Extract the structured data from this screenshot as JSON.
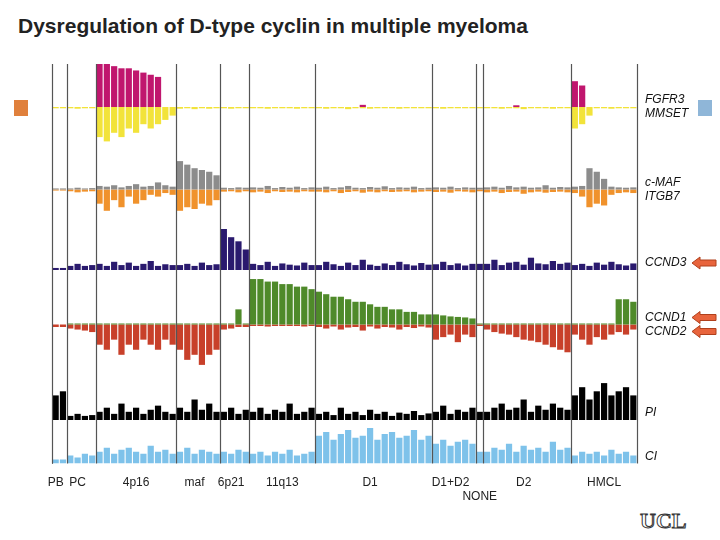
{
  "chart_data": {
    "type": "bar",
    "title": "Dysregulation of D-type cyclin in multiple myeloma",
    "logo": "UCL",
    "grid": false,
    "tick_labels": "x",
    "categories": [
      "PB",
      null,
      null,
      "PC",
      null,
      null,
      null,
      null,
      null,
      null,
      null,
      "4p16",
      null,
      null,
      null,
      null,
      null,
      null,
      null,
      "maf",
      null,
      null,
      null,
      null,
      "6p21",
      null,
      null,
      null,
      null,
      null,
      null,
      "11q13",
      null,
      null,
      null,
      null,
      null,
      null,
      null,
      null,
      null,
      null,
      null,
      "D1",
      null,
      null,
      null,
      null,
      null,
      null,
      null,
      null,
      null,
      null,
      "D1+D2",
      null,
      null,
      null,
      "NONE",
      null,
      null,
      null,
      null,
      null,
      "D2",
      null,
      null,
      null,
      null,
      null,
      null,
      null,
      null,
      null,
      null,
      "HMCL",
      null,
      null,
      null,
      null
    ],
    "group_sizes": [
      2,
      4,
      11,
      6,
      4,
      9,
      16,
      6,
      1,
      12,
      9
    ],
    "tracks": [
      {
        "ylim": [
          -10,
          10
        ],
        "series": [
          {
            "name": "FGFR3",
            "color": "#c0166e",
            "values": [
              0,
              0,
              0,
              0,
              0,
              0,
              10,
              10,
              9.5,
              9,
              9,
              8.5,
              8,
              7.5,
              7,
              0,
              0,
              0,
              0,
              0,
              0,
              0,
              0,
              0,
              0,
              0,
              0,
              0,
              0,
              0,
              0,
              0,
              0,
              0,
              0,
              0,
              0,
              0,
              0,
              0,
              0,
              0,
              0.5,
              0,
              0,
              0,
              0,
              0,
              0,
              0,
              0,
              0,
              0,
              0,
              0,
              0,
              0,
              0,
              0,
              0,
              0,
              0,
              0,
              0.4,
              0,
              0,
              0,
              0,
              0,
              0,
              0,
              6,
              5,
              0,
              0,
              0,
              0,
              0,
              0,
              0
            ]
          },
          {
            "name": "MMSET",
            "color": "#f2e33a",
            "values": [
              -0.3,
              -0.3,
              -0.3,
              -0.4,
              -0.3,
              -0.3,
              -7,
              -8,
              -6,
              -7,
              -5,
              -6,
              -4,
              -5,
              -4,
              -3,
              -2,
              -0.4,
              -0.3,
              -0.5,
              -0.3,
              -0.4,
              -0.3,
              -0.3,
              -0.4,
              -0.3,
              -0.3,
              -0.3,
              -0.3,
              -0.4,
              -0.3,
              -0.3,
              -0.3,
              -0.4,
              -0.3,
              -0.3,
              -0.3,
              -0.4,
              -0.3,
              -0.3,
              -0.5,
              -0.3,
              -0.3,
              -0.4,
              -0.3,
              -0.3,
              -0.3,
              -0.4,
              -0.3,
              -0.3,
              -0.3,
              -0.3,
              -0.3,
              -0.4,
              -0.3,
              -0.3,
              -0.3,
              -0.3,
              -0.3,
              -0.3,
              -0.3,
              -0.4,
              -0.3,
              -0.3,
              -0.5,
              -0.3,
              -0.3,
              -0.3,
              -0.4,
              -0.3,
              -0.3,
              -5,
              -4,
              -2,
              -0.3,
              -0.3,
              -0.4,
              -0.3,
              -0.3,
              -0.3
            ]
          }
        ]
      },
      {
        "ylim": [
          -10,
          10
        ],
        "series": [
          {
            "name": "c-MAF",
            "color": "#8c8c8c",
            "values": [
              0.3,
              0.3,
              0.3,
              0.5,
              0.3,
              0.4,
              1,
              0.8,
              1.2,
              0.6,
              1,
              1.5,
              0.8,
              1,
              2,
              1.2,
              0.8,
              8,
              7,
              6,
              5.5,
              5,
              4,
              0.5,
              0.4,
              0.6,
              0.5,
              0.6,
              0.5,
              1,
              0.4,
              0.7,
              0.5,
              0.8,
              0.4,
              0.6,
              0.5,
              0.8,
              0.4,
              0.6,
              1,
              0.5,
              0.4,
              0.7,
              0.5,
              0.9,
              0.4,
              0.6,
              0.5,
              0.8,
              0.4,
              0.5,
              0.6,
              0.5,
              0.8,
              0.4,
              0.6,
              0.5,
              0.5,
              0.6,
              0.8,
              0.5,
              1,
              0.6,
              0.8,
              0.5,
              0.6,
              1.2,
              0.5,
              0.7,
              0.6,
              0.8,
              1,
              6,
              5,
              3,
              0.8,
              0.6,
              0.5,
              0.6
            ]
          },
          {
            "name": "ITGB7",
            "color": "#f0922c",
            "values": [
              -0.3,
              -0.3,
              -0.5,
              -0.8,
              -0.6,
              -0.5,
              -4,
              -6,
              -3,
              -5,
              -2,
              -4,
              -3,
              -1.5,
              -2,
              -1,
              -1.5,
              -6,
              -5,
              -5.5,
              -4,
              -4.5,
              -3,
              -0.6,
              -0.5,
              -0.8,
              -0.5,
              -0.8,
              -0.6,
              -1,
              -0.5,
              -0.7,
              -0.6,
              -0.8,
              -0.5,
              -0.6,
              -0.6,
              -0.8,
              -0.5,
              -1,
              -0.7,
              -0.5,
              -0.9,
              -0.6,
              -0.8,
              -0.5,
              -0.7,
              -0.6,
              -0.5,
              -0.8,
              -0.6,
              -0.5,
              -0.7,
              -0.6,
              -0.9,
              -0.5,
              -0.6,
              -0.8,
              -0.5,
              -0.8,
              -0.6,
              -1,
              -0.7,
              -0.6,
              -1.2,
              -0.8,
              -0.6,
              -0.9,
              -0.7,
              -0.6,
              -0.8,
              -1,
              -2,
              -5,
              -4,
              -4.5,
              -1.5,
              -1,
              -0.8,
              -1
            ]
          }
        ]
      },
      {
        "ylim": [
          0,
          10
        ],
        "series": [
          {
            "name": "CCND3",
            "color": "#2a1a6e",
            "values": [
              0.5,
              0.5,
              1,
              1.5,
              1,
              1.2,
              1.5,
              1,
              2,
              1.2,
              1.8,
              1,
              1.5,
              2.2,
              1,
              1.4,
              1.2,
              1.2,
              1.5,
              1,
              1.8,
              1.2,
              1.4,
              10,
              8,
              7,
              5,
              1.5,
              1.2,
              2,
              1,
              1.6,
              1.3,
              1.1,
              1.8,
              1.2,
              1.2,
              2,
              1.4,
              1,
              1.8,
              1.2,
              2.5,
              1.3,
              1,
              1.6,
              1.2,
              2,
              1.4,
              1.1,
              1.7,
              1.3,
              1.4,
              2,
              1.2,
              1.6,
              1.1,
              1.5,
              1.5,
              1.5,
              2.5,
              1.2,
              1.8,
              2,
              1.3,
              3,
              1.6,
              1.4,
              2.2,
              1.5,
              1.8,
              1.2,
              1.5,
              1,
              1.8,
              1.3,
              2,
              1.4,
              1.1,
              1.6
            ]
          }
        ]
      },
      {
        "ylim": [
          -10,
          10
        ],
        "series": [
          {
            "name": "CCND1",
            "color": "#4f8a2a",
            "values": [
              0,
              0,
              0.2,
              0.2,
              0.2,
              0.2,
              0.2,
              0.2,
              0.2,
              0.2,
              0.2,
              0.2,
              0.2,
              0.2,
              0.2,
              0.2,
              0.2,
              0.2,
              0.2,
              0.2,
              0.2,
              0.2,
              0.2,
              0.2,
              0.2,
              3,
              0.2,
              9,
              9,
              8.5,
              8.5,
              8,
              8,
              7.5,
              7.5,
              7,
              6.5,
              6,
              5.5,
              5.5,
              5,
              4.5,
              4.5,
              4,
              3.5,
              3.5,
              3,
              3,
              2.5,
              2.5,
              2,
              2,
              2,
              1.8,
              1.6,
              1.5,
              1.4,
              1.2,
              0.2,
              0.2,
              0.2,
              0.2,
              0.2,
              0.2,
              0.2,
              0.2,
              0.2,
              0.2,
              0.2,
              0.2,
              0.2,
              0.2,
              0.2,
              0.2,
              0.2,
              0.2,
              0.2,
              5,
              5,
              4.5
            ]
          },
          {
            "name": "CCND2",
            "color": "#c8402a",
            "values": [
              -0.5,
              -0.5,
              -0.8,
              -1,
              -1.2,
              -1.5,
              -4,
              -5,
              -3,
              -6,
              -4,
              -5,
              -3,
              -4,
              -5,
              -3,
              -4,
              -5,
              -7,
              -6,
              -8,
              -6,
              -5,
              -1,
              -0.8,
              -0.5,
              -0.5,
              -0.3,
              -0.3,
              -0.4,
              -0.3,
              -0.3,
              -0.3,
              -0.3,
              -0.4,
              -0.3,
              -0.5,
              -0.8,
              -0.4,
              -1,
              -0.6,
              -0.5,
              -1.2,
              -0.4,
              -0.8,
              -0.5,
              -0.6,
              -1,
              -0.5,
              -0.7,
              -0.4,
              -0.6,
              -3,
              -2.5,
              -2,
              -3.5,
              -2,
              -2.5,
              -0.3,
              -1,
              -1.5,
              -1.8,
              -2,
              -2.5,
              -3,
              -3.2,
              -3.5,
              -4,
              -4.5,
              -5,
              -5.5,
              -2,
              -3,
              -4,
              -2.5,
              -3,
              -2,
              -1.5,
              -2,
              -1
            ]
          }
        ]
      },
      {
        "ylim": [
          0,
          10
        ],
        "series": [
          {
            "name": "PI",
            "color": "#000000",
            "values": [
              6,
              7,
              1,
              1.5,
              1,
              1.2,
              2,
              3,
              1.5,
              4,
              2,
              3,
              1.5,
              2.5,
              3.5,
              2,
              1.5,
              3,
              2,
              5,
              2.5,
              4,
              2,
              2,
              3,
              1.5,
              2.5,
              2,
              3,
              1.5,
              2.5,
              2,
              4,
              1.5,
              2,
              3,
              1.5,
              2,
              1.2,
              3,
              1.5,
              2,
              1.2,
              2.5,
              1.5,
              2,
              1,
              1.8,
              1.5,
              2.2,
              1.2,
              1.6,
              2,
              3.5,
              1.5,
              2.5,
              2,
              3,
              2,
              2,
              3,
              4,
              2.5,
              3,
              5,
              2,
              3.5,
              2.5,
              4,
              3,
              2.5,
              6,
              8,
              5,
              7,
              9,
              6,
              7,
              8,
              6
            ]
          }
        ]
      },
      {
        "ylim": [
          0,
          10
        ],
        "series": [
          {
            "name": "CI",
            "color": "#7ec2ea",
            "values": [
              1,
              1,
              2,
              1.5,
              2.5,
              2,
              3,
              4,
              2.5,
              3.5,
              4,
              3,
              2.5,
              4.5,
              3,
              3.5,
              2.5,
              3,
              4,
              2.5,
              3.5,
              3,
              2.5,
              3,
              2.5,
              3.5,
              3,
              2.5,
              3,
              2,
              3,
              2.5,
              3.5,
              2,
              2.5,
              3,
              7,
              8,
              6,
              7.5,
              8.5,
              6.5,
              7,
              9,
              6,
              7.5,
              8,
              6.5,
              7,
              8.5,
              6,
              7,
              5,
              6,
              4.5,
              5.5,
              6,
              5,
              3,
              3,
              4,
              3.5,
              5,
              3,
              4.5,
              3.5,
              4,
              3,
              5.5,
              3.5,
              4,
              2,
              3,
              2.5,
              3,
              2,
              3.5,
              2.5,
              3,
              2
            ]
          }
        ]
      }
    ]
  }
}
